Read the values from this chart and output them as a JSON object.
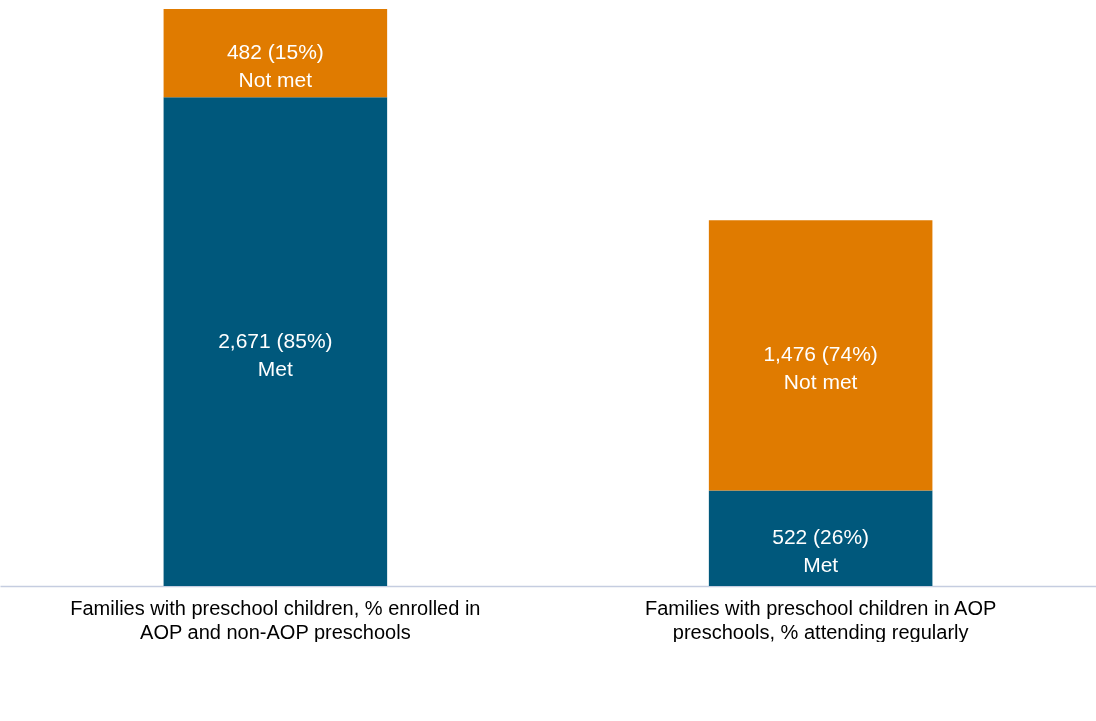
{
  "chart_data": {
    "type": "bar",
    "stacked": true,
    "categories": [
      "Families with preschool children, % enrolled in AOP and non-AOP preschools",
      "Families with preschool children in AOP preschools, % attending regularly"
    ],
    "series": [
      {
        "name": "Met",
        "color": "#00587c",
        "values": [
          2671,
          522
        ],
        "value_labels": [
          "2,671 (85%)",
          "522 (26%)"
        ]
      },
      {
        "name": "Not met",
        "color": "#e07b00",
        "values": [
          482,
          1476
        ],
        "value_labels": [
          "482 (15%)",
          "1,476 (74%)"
        ]
      }
    ],
    "legend": false,
    "grid": false
  }
}
